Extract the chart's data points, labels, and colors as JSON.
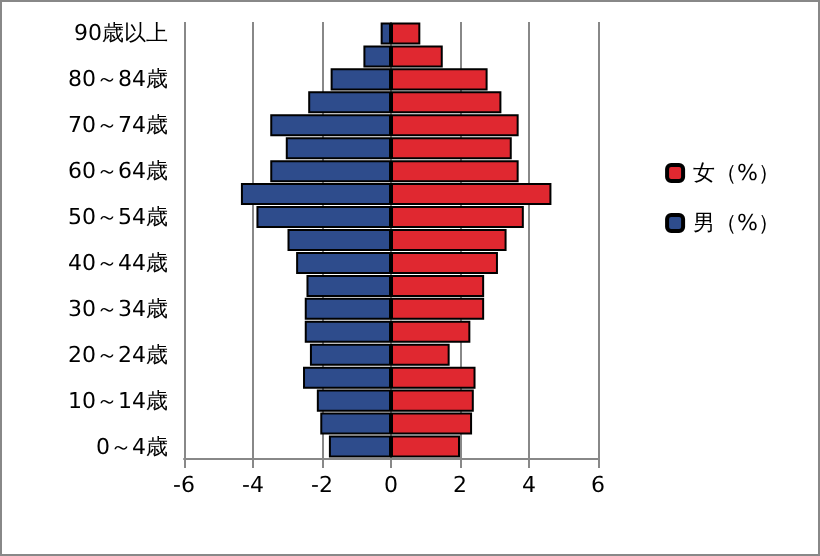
{
  "chart_data": {
    "type": "bar",
    "orientation": "horizontal",
    "categories": [
      "90歳以上",
      null,
      "80～84歳",
      null,
      "70～74歳",
      null,
      "60～64歳",
      null,
      "50～54歳",
      null,
      "40～44歳",
      null,
      "30～34歳",
      null,
      "20～24歳",
      null,
      "10～14歳",
      null,
      "0～4歳"
    ],
    "series": [
      {
        "name": "女（%）",
        "color": "#e02830",
        "values": [
          0.85,
          1.5,
          2.8,
          3.2,
          3.7,
          3.5,
          3.7,
          4.65,
          3.85,
          3.35,
          3.1,
          2.7,
          2.7,
          2.3,
          1.7,
          2.45,
          2.4,
          2.35,
          2.0
        ]
      },
      {
        "name": "男（%）",
        "color": "#2e4c8c",
        "values": [
          -0.3,
          -0.8,
          -1.75,
          -2.4,
          -3.5,
          -3.05,
          -3.5,
          -4.35,
          -3.9,
          -3.0,
          -2.75,
          -2.45,
          -2.5,
          -2.5,
          -2.35,
          -2.55,
          -2.15,
          -2.05,
          -1.8
        ]
      }
    ],
    "xlim": [
      -6,
      6
    ],
    "xticks": [
      -6,
      -4,
      -2,
      0,
      2,
      4,
      6
    ],
    "grid": "x",
    "legend": "right",
    "stacked": true
  }
}
